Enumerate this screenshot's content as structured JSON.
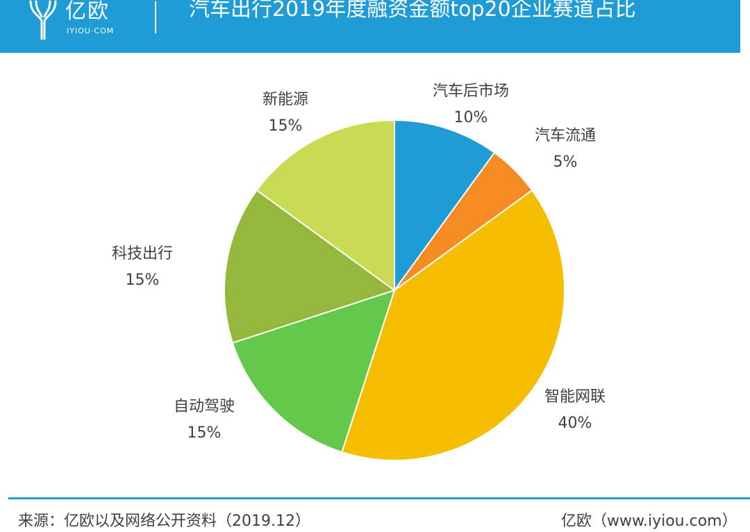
{
  "header": {
    "logo_cn": "亿欧",
    "logo_en": "IYIOU·COM",
    "title": "汽车出行2019年度融资金额top20企业赛道占比"
  },
  "colors": {
    "header_bg": "#1f9bd5",
    "footer_line": "#1f9bd5"
  },
  "chart_data": {
    "type": "pie",
    "title": "汽车出行2019年度融资金额top20企业赛道占比",
    "start_angle_deg": 0,
    "direction": "clockwise",
    "slices": [
      {
        "label": "汽车后市场",
        "value": 10,
        "pct_label": "10%",
        "color": "#1f9bd5"
      },
      {
        "label": "汽车流通",
        "value": 5,
        "pct_label": "5%",
        "color": "#f48c23"
      },
      {
        "label": "智能网联",
        "value": 40,
        "pct_label": "40%",
        "color": "#f5bf00"
      },
      {
        "label": "自动驾驶",
        "value": 15,
        "pct_label": "15%",
        "color": "#62c94b"
      },
      {
        "label": "科技出行",
        "value": 15,
        "pct_label": "15%",
        "color": "#93b83b"
      },
      {
        "label": "新能源",
        "value": 15,
        "pct_label": "15%",
        "color": "#c8db53"
      }
    ]
  },
  "footer": {
    "source": "来源：亿欧以及网络公开资料（2019.12）",
    "brand": "亿欧（www.iyiou.com）"
  }
}
